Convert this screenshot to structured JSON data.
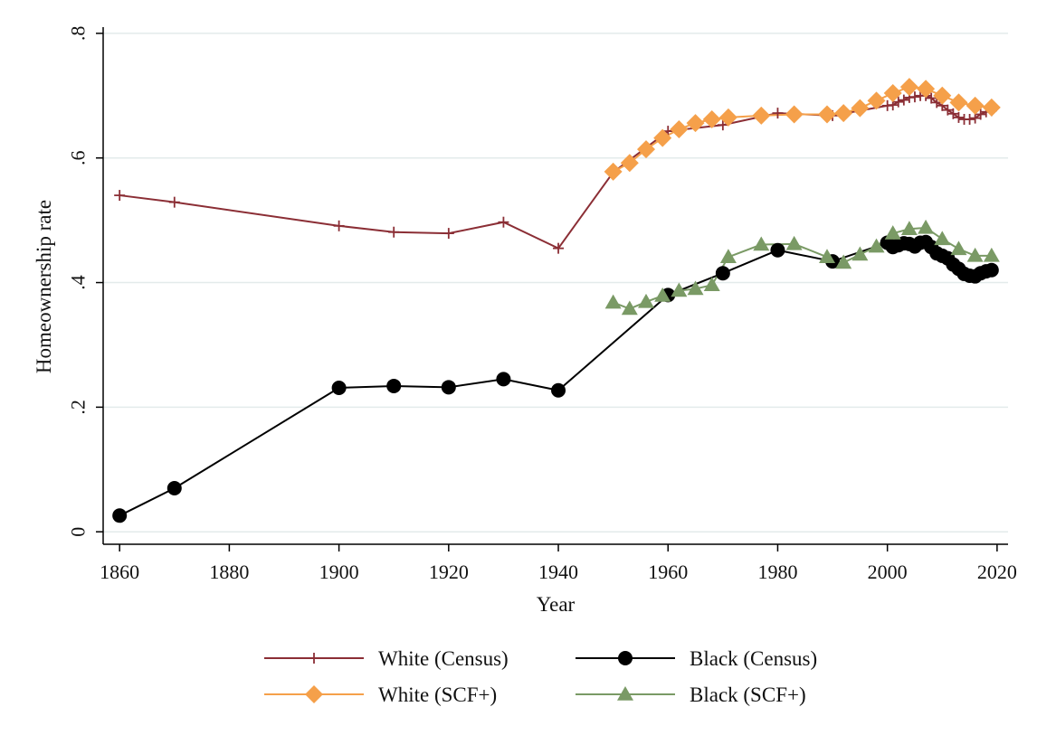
{
  "chart_data": {
    "type": "line",
    "title": "",
    "xlabel": "Year",
    "ylabel": "Homeownership rate",
    "xlim": [
      1857,
      1102
    ],
    "xlim_note_removed": "",
    "x_range": [
      1857,
      2022
    ],
    "y_range": [
      -0.02,
      0.81
    ],
    "x_ticks": [
      1860,
      1880,
      1900,
      1920,
      1940,
      1960,
      1980,
      2000,
      2020
    ],
    "x_tick_labels": [
      "1860",
      "1880",
      "1900",
      "1920",
      "1940",
      "1960",
      "1980",
      "2000",
      "2020"
    ],
    "y_ticks": [
      0,
      0.2,
      0.4,
      0.6,
      0.8
    ],
    "y_tick_labels": [
      "0",
      ".2",
      ".4",
      ".6",
      ".8"
    ],
    "grid": "horizontal",
    "legend_position": "bottom",
    "series": [
      {
        "name": "White (Census)",
        "color": "#8b2e35",
        "marker": "plus",
        "points": [
          [
            1860,
            0.54
          ],
          [
            1870,
            0.529
          ],
          [
            1900,
            0.491
          ],
          [
            1910,
            0.481
          ],
          [
            1920,
            0.479
          ],
          [
            1930,
            0.497
          ],
          [
            1940,
            0.455
          ],
          [
            1950,
            0.577
          ],
          [
            1960,
            0.643
          ],
          [
            1970,
            0.653
          ],
          [
            1980,
            0.672
          ],
          [
            1990,
            0.668
          ],
          [
            2000,
            0.684
          ],
          [
            2001,
            0.685
          ],
          [
            2002,
            0.69
          ],
          [
            2003,
            0.693
          ],
          [
            2004,
            0.697
          ],
          [
            2005,
            0.698
          ],
          [
            2006,
            0.7
          ],
          [
            2007,
            0.7
          ],
          [
            2008,
            0.696
          ],
          [
            2009,
            0.689
          ],
          [
            2010,
            0.684
          ],
          [
            2011,
            0.677
          ],
          [
            2012,
            0.671
          ],
          [
            2013,
            0.665
          ],
          [
            2014,
            0.662
          ],
          [
            2015,
            0.662
          ],
          [
            2016,
            0.664
          ],
          [
            2017,
            0.67
          ],
          [
            2018,
            0.674
          ],
          [
            2019,
            0.676
          ]
        ]
      },
      {
        "name": "Black (Census)",
        "color": "#000000",
        "marker": "circle",
        "points": [
          [
            1860,
            0.026
          ],
          [
            1870,
            0.07
          ],
          [
            1900,
            0.231
          ],
          [
            1910,
            0.234
          ],
          [
            1920,
            0.232
          ],
          [
            1930,
            0.245
          ],
          [
            1940,
            0.227
          ],
          [
            1960,
            0.38
          ],
          [
            1970,
            0.415
          ],
          [
            1980,
            0.452
          ],
          [
            1990,
            0.434
          ],
          [
            2000,
            0.464
          ],
          [
            2001,
            0.457
          ],
          [
            2002,
            0.46
          ],
          [
            2003,
            0.463
          ],
          [
            2004,
            0.462
          ],
          [
            2005,
            0.458
          ],
          [
            2006,
            0.464
          ],
          [
            2007,
            0.465
          ],
          [
            2008,
            0.457
          ],
          [
            2009,
            0.447
          ],
          [
            2010,
            0.443
          ],
          [
            2011,
            0.439
          ],
          [
            2012,
            0.429
          ],
          [
            2013,
            0.422
          ],
          [
            2014,
            0.414
          ],
          [
            2015,
            0.411
          ],
          [
            2016,
            0.41
          ],
          [
            2017,
            0.415
          ],
          [
            2018,
            0.418
          ],
          [
            2019,
            0.42
          ]
        ]
      },
      {
        "name": "White (SCF+)",
        "color": "#f5a04a",
        "marker": "diamond",
        "points": [
          [
            1950,
            0.578
          ],
          [
            1953,
            0.592
          ],
          [
            1956,
            0.614
          ],
          [
            1959,
            0.632
          ],
          [
            1962,
            0.646
          ],
          [
            1965,
            0.656
          ],
          [
            1968,
            0.662
          ],
          [
            1971,
            0.665
          ],
          [
            1977,
            0.668
          ],
          [
            1983,
            0.67
          ],
          [
            1989,
            0.67
          ],
          [
            1992,
            0.672
          ],
          [
            1995,
            0.68
          ],
          [
            1998,
            0.692
          ],
          [
            2001,
            0.704
          ],
          [
            2004,
            0.714
          ],
          [
            2007,
            0.711
          ],
          [
            2010,
            0.7
          ],
          [
            2013,
            0.689
          ],
          [
            2016,
            0.684
          ],
          [
            2019,
            0.681
          ]
        ]
      },
      {
        "name": "Black (SCF+)",
        "color": "#7a9a65",
        "marker": "triangle",
        "points": [
          [
            1950,
            0.368
          ],
          [
            1953,
            0.358
          ],
          [
            1956,
            0.369
          ],
          [
            1959,
            0.379
          ],
          [
            1962,
            0.387
          ],
          [
            1965,
            0.39
          ],
          [
            1968,
            0.396
          ],
          [
            1971,
            0.441
          ],
          [
            1977,
            0.461
          ],
          [
            1983,
            0.462
          ],
          [
            1989,
            0.441
          ],
          [
            1992,
            0.432
          ],
          [
            1995,
            0.445
          ],
          [
            1998,
            0.458
          ],
          [
            2001,
            0.479
          ],
          [
            2004,
            0.486
          ],
          [
            2007,
            0.488
          ],
          [
            2010,
            0.47
          ],
          [
            2013,
            0.454
          ],
          [
            2016,
            0.443
          ],
          [
            2019,
            0.443
          ]
        ]
      }
    ],
    "legend_order": [
      "White (Census)",
      "Black (Census)",
      "White (SCF+)",
      "Black (SCF+)"
    ]
  }
}
